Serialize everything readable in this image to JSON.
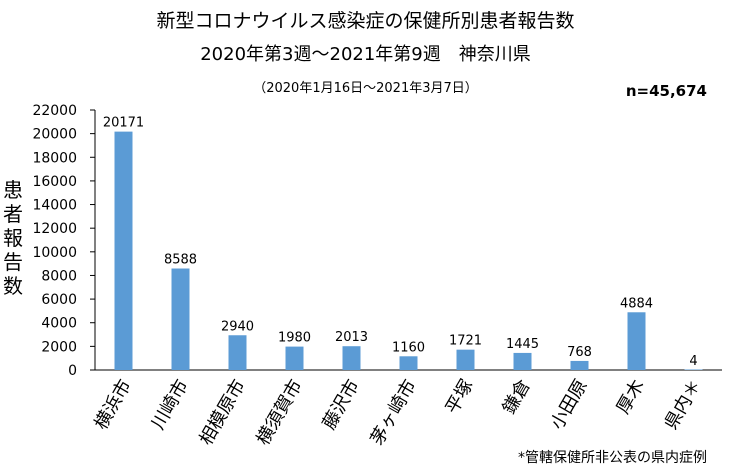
{
  "title_line1": "新型コロナウイルス感染症の保健所別患者報告数",
  "title_line2": "2020年第3週～2021年第9週　神奈川県",
  "title_line3": "（2020年1月16日～2021年3月7日）",
  "total_label": "n=45,674",
  "footnote": "*管轄保健所非公表の県内症例",
  "colors": {
    "bar": "#5b9bd5",
    "axis": "#000000",
    "grid": "#ffffff"
  },
  "chart_data": {
    "type": "bar",
    "title": "新型コロナウイルス感染症の保健所別患者報告数",
    "xlabel": "",
    "ylabel": "患者報告数",
    "categories": [
      "横浜市",
      "川崎市",
      "相模原市",
      "横須賀市",
      "藤沢市",
      "茅ヶ崎市",
      "平塚",
      "鎌倉",
      "小田原",
      "厚木",
      "県内＊"
    ],
    "values": [
      20171,
      8588,
      2940,
      1980,
      2013,
      1160,
      1721,
      1445,
      768,
      4884,
      4
    ],
    "ylim": [
      0,
      22000
    ],
    "yticks": [
      0,
      2000,
      4000,
      6000,
      8000,
      10000,
      12000,
      14000,
      16000,
      18000,
      20000,
      22000
    ],
    "grid": false,
    "legend": "none"
  }
}
